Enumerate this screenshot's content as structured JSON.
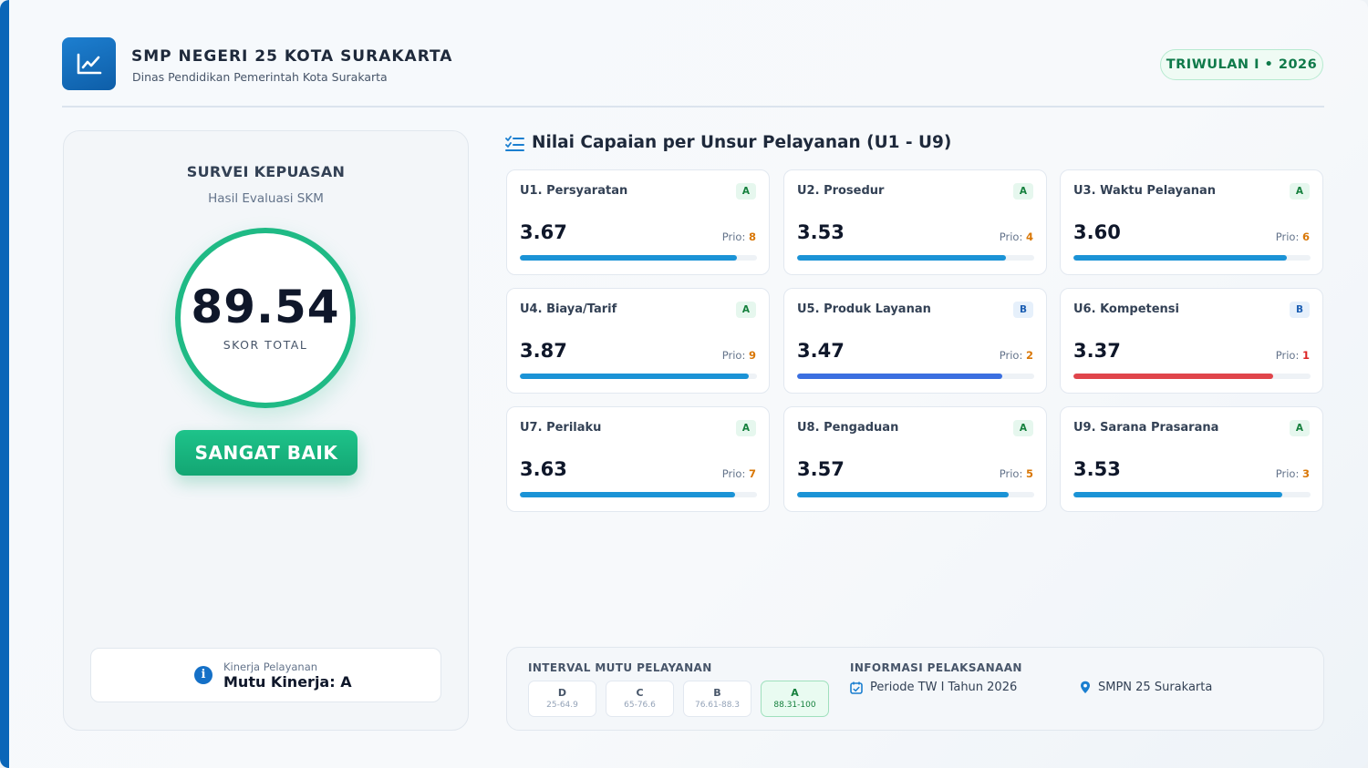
{
  "header": {
    "school_name": "SMP NEGERI 25 KOTA SURAKARTA",
    "agency": "Dinas Pendidikan Pemerintah Kota Surakarta",
    "period_badge": "TRIWULAN I • 2026",
    "logo_icon": "line-chart-icon"
  },
  "survey": {
    "title": "SURVEI KEPUASAN",
    "subtitle": "Hasil Evaluasi SKM",
    "score": "89.54",
    "score_label": "SKOR TOTAL",
    "verdict": "SANGAT BAIK",
    "kinerja_label": "Kinerja Pelayanan",
    "kinerja_value": "Mutu Kinerja: A"
  },
  "section": {
    "title": "Nilai Capaian per Unsur Pelayanan (U1 - U9)"
  },
  "prio_label": "Prio:",
  "units": [
    {
      "name": "U1. Persyaratan",
      "grade": "A",
      "value": "3.67",
      "prio": "8",
      "progress": 0.917,
      "color": "#1b93d6",
      "prio_color": "#d97706"
    },
    {
      "name": "U2. Prosedur",
      "grade": "A",
      "value": "3.53",
      "prio": "4",
      "progress": 0.88,
      "color": "#1b93d6",
      "prio_color": "#d97706"
    },
    {
      "name": "U3. Waktu Pelayanan",
      "grade": "A",
      "value": "3.60",
      "prio": "6",
      "progress": 0.9,
      "color": "#1b93d6",
      "prio_color": "#d97706"
    },
    {
      "name": "U4. Biaya/Tarif",
      "grade": "A",
      "value": "3.87",
      "prio": "9",
      "progress": 0.967,
      "color": "#1b93d6",
      "prio_color": "#d97706"
    },
    {
      "name": "U5. Produk Layanan",
      "grade": "B",
      "value": "3.47",
      "prio": "2",
      "progress": 0.867,
      "color": "#3b6fe0",
      "prio_color": "#d97706"
    },
    {
      "name": "U6. Kompetensi",
      "grade": "B",
      "value": "3.37",
      "prio": "1",
      "progress": 0.842,
      "color": "#e0454b",
      "prio_color": "#dc2626"
    },
    {
      "name": "U7. Perilaku",
      "grade": "A",
      "value": "3.63",
      "prio": "7",
      "progress": 0.907,
      "color": "#1b93d6",
      "prio_color": "#d97706"
    },
    {
      "name": "U8. Pengaduan",
      "grade": "A",
      "value": "3.57",
      "prio": "5",
      "progress": 0.892,
      "color": "#1b93d6",
      "prio_color": "#d97706"
    },
    {
      "name": "U9. Sarana Prasarana",
      "grade": "A",
      "value": "3.53",
      "prio": "3",
      "progress": 0.88,
      "color": "#1b93d6",
      "prio_color": "#d97706"
    }
  ],
  "interval": {
    "title": "INTERVAL MUTU PELAYANAN",
    "items": [
      {
        "grade": "D",
        "range": "25-64.9"
      },
      {
        "grade": "C",
        "range": "65-76.6"
      },
      {
        "grade": "B",
        "range": "76.61-88.3"
      },
      {
        "grade": "A",
        "range": "88.31-100"
      }
    ],
    "active_grade": "A"
  },
  "info": {
    "title": "INFORMASI PELAKSANAAN",
    "period": "Periode TW I Tahun 2026",
    "location": "SMPN 25 Surakarta"
  },
  "colors": {
    "brand": "#0e5ea8",
    "success": "#1fba85",
    "danger": "#e0454b"
  }
}
